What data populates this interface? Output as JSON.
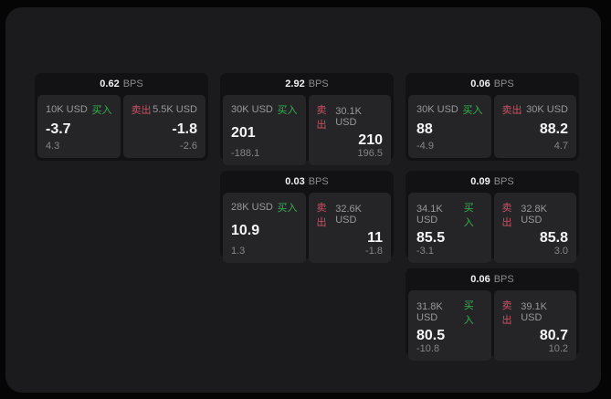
{
  "unit": "BPS",
  "labels": {
    "buy": "买入",
    "sell": "卖出"
  },
  "colors": {
    "buy_accent": "#32b14e",
    "sell_accent": "#cb5164",
    "panel_background": "#1b1b1d",
    "card_background": "#121214",
    "cell_background": "#252528"
  },
  "cards": [
    {
      "spread": "0.62",
      "buy": {
        "size": "10K USD",
        "price": "-3.7",
        "delta": "4.3"
      },
      "sell": {
        "size": "5.5K USD",
        "price": "-1.8",
        "delta": "-2.6"
      }
    },
    {
      "spread": "2.92",
      "buy": {
        "size": "30K USD",
        "price": "201",
        "delta": "-188.1"
      },
      "sell": {
        "size": "30.1K USD",
        "price": "210",
        "delta": "196.5"
      }
    },
    {
      "spread": "0.06",
      "buy": {
        "size": "30K USD",
        "price": "88",
        "delta": "-4.9"
      },
      "sell": {
        "size": "30K USD",
        "price": "88.2",
        "delta": "4.7"
      }
    },
    {
      "spread": "0.03",
      "buy": {
        "size": "28K USD",
        "price": "10.9",
        "delta": "1.3"
      },
      "sell": {
        "size": "32.6K USD",
        "price": "11",
        "delta": "-1.8"
      }
    },
    {
      "spread": "0.09",
      "buy": {
        "size": "34.1K USD",
        "price": "85.5",
        "delta": "-3.1"
      },
      "sell": {
        "size": "32.8K USD",
        "price": "85.8",
        "delta": "3.0"
      }
    },
    {
      "spread": "0.06",
      "buy": {
        "size": "31.8K USD",
        "price": "80.5",
        "delta": "-10.8"
      },
      "sell": {
        "size": "39.1K USD",
        "price": "80.7",
        "delta": "10.2"
      }
    }
  ]
}
